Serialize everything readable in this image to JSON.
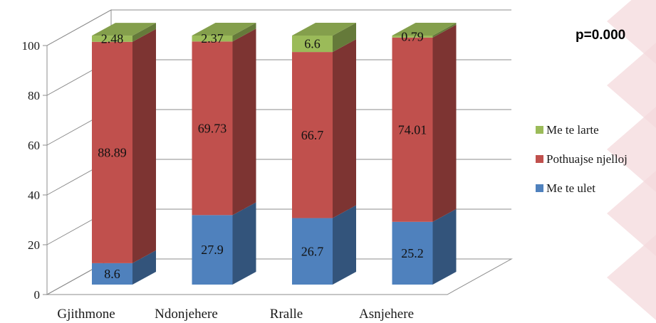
{
  "chart_data": {
    "type": "bar",
    "stacked": true,
    "three_d": true,
    "categories": [
      "Gjithmone",
      "Ndonjehere",
      "Rralle",
      "Asnjehere"
    ],
    "series": [
      {
        "name": "Me te ulet",
        "values": [
          8.6,
          27.9,
          26.7,
          25.2
        ],
        "color": "#4f81bd",
        "data_labels": [
          "8.6",
          "27.9",
          "26.7",
          "25.2"
        ]
      },
      {
        "name": "Pothuajse njelloj",
        "values": [
          88.89,
          69.73,
          66.7,
          74.01
        ],
        "color": "#c0504d",
        "data_labels": [
          "88.89",
          "69.73",
          "66.7",
          "74.01"
        ]
      },
      {
        "name": "Me te larte",
        "values": [
          2.48,
          2.37,
          6.6,
          0.79
        ],
        "color": "#9bbb59",
        "data_labels": [
          "2.48",
          "2.37",
          "6.6",
          "0.79"
        ]
      }
    ],
    "ylim": [
      0,
      100
    ],
    "yticks": [
      "0",
      "20",
      "40",
      "60",
      "80",
      "100"
    ],
    "grid": true,
    "legend_position": "right",
    "title": "",
    "xlabel": "",
    "ylabel": ""
  },
  "annotation": "p=0.000",
  "decoration_color": "#f4d9dc"
}
